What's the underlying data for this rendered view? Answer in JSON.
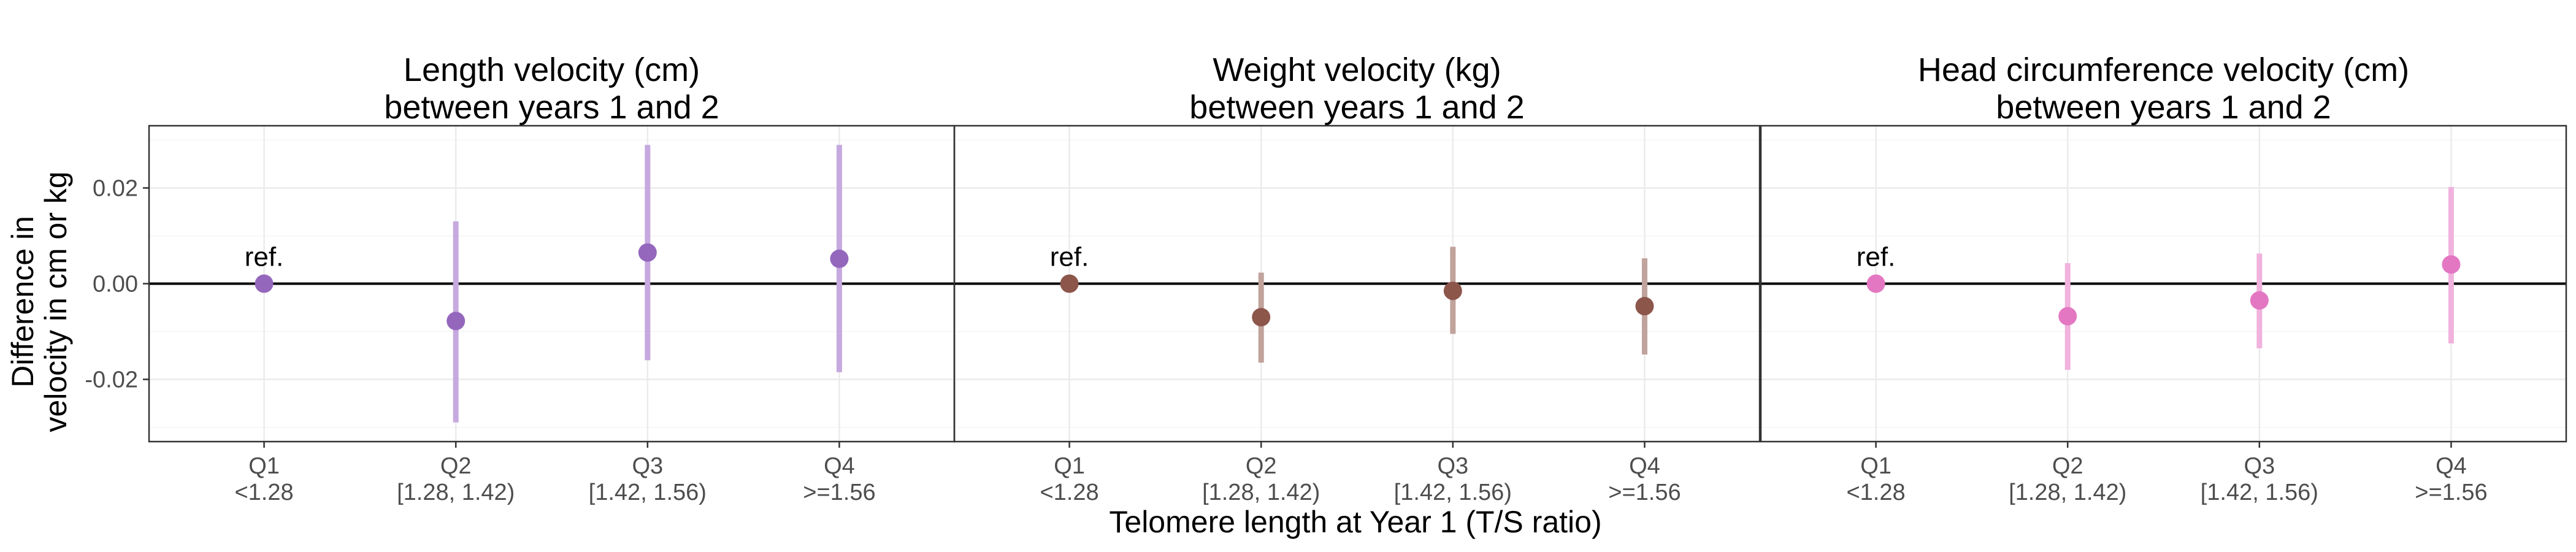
{
  "chart_data": {
    "type": "scatter",
    "subtype": "point-range",
    "x_axis_title": "Telomere length at Year 1 (T/S ratio)",
    "y_axis_title": [
      "Difference in",
      "velocity in cm or kg"
    ],
    "ylim": [
      -0.033,
      0.033
    ],
    "y_ticks": [
      -0.02,
      0.0,
      0.02
    ],
    "y_tick_labels": [
      "-0.02",
      "0.00",
      "0.02"
    ],
    "grid": true,
    "reference_line_y": 0,
    "categories": [
      {
        "line1": "Q1",
        "line2": "<1.28"
      },
      {
        "line1": "Q2",
        "line2": "[1.28, 1.42)"
      },
      {
        "line1": "Q3",
        "line2": "[1.42, 1.56)"
      },
      {
        "line1": "Q4",
        "line2": ">=1.56"
      }
    ],
    "reference_label": "ref.",
    "panels": [
      {
        "title": [
          "Length velocity (cm)",
          "between years 1 and 2"
        ],
        "color": "#9467bd",
        "ci_color": "#c6a9df",
        "estimates": [
          0.0,
          -0.0078,
          0.0065,
          0.0052
        ],
        "lower": [
          null,
          -0.029,
          -0.016,
          -0.0185
        ],
        "upper": [
          null,
          0.013,
          0.029,
          0.029
        ]
      },
      {
        "title": [
          "Weight velocity (kg)",
          "between years 1 and 2"
        ],
        "color": "#8c564b",
        "ci_color": "#c0a39c",
        "estimates": [
          0.0,
          -0.007,
          -0.0015,
          -0.0047
        ],
        "lower": [
          null,
          -0.0165,
          -0.0105,
          -0.0148
        ],
        "upper": [
          null,
          0.0023,
          0.0077,
          0.0053
        ]
      },
      {
        "title": [
          "Head circumference velocity (cm)",
          "between years 1 and 2"
        ],
        "color": "#e377c2",
        "ci_color": "#f1b2de",
        "estimates": [
          0.0,
          -0.0068,
          -0.0035,
          0.004
        ],
        "lower": [
          null,
          -0.018,
          -0.0135,
          -0.0125
        ],
        "upper": [
          null,
          0.0043,
          0.0063,
          0.0202
        ]
      }
    ]
  }
}
